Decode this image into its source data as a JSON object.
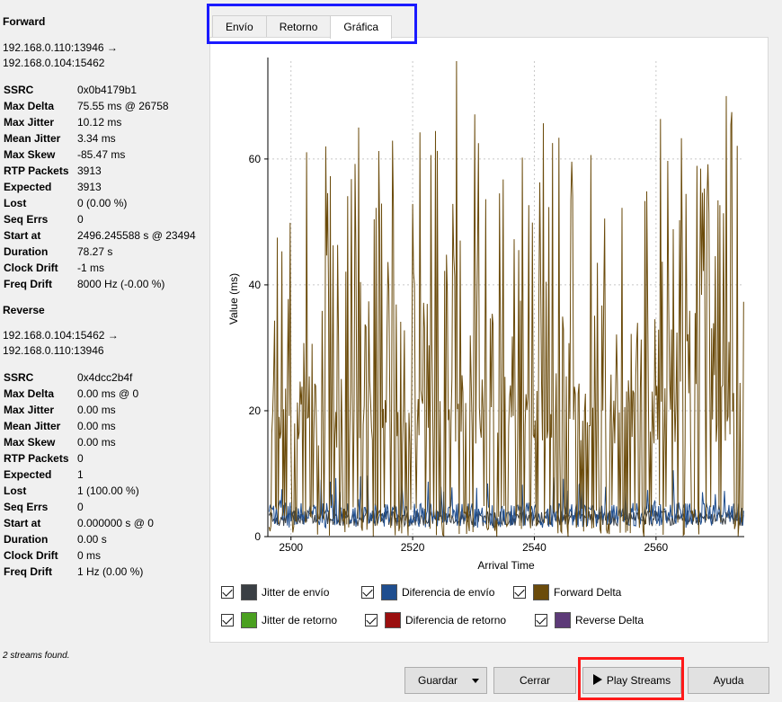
{
  "forward": {
    "title": "Forward",
    "flow_line1": "192.168.0.110:13946 →",
    "flow_line2": "192.168.0.104:15462",
    "stats": [
      {
        "k": "SSRC",
        "v": "0x0b4179b1"
      },
      {
        "k": "Max Delta",
        "v": "75.55 ms @ 26758"
      },
      {
        "k": "Max Jitter",
        "v": "10.12 ms"
      },
      {
        "k": "Mean Jitter",
        "v": "3.34 ms"
      },
      {
        "k": "Max Skew",
        "v": "-85.47 ms"
      },
      {
        "k": "RTP Packets",
        "v": "3913"
      },
      {
        "k": "Expected",
        "v": "3913"
      },
      {
        "k": "Lost",
        "v": "0 (0.00 %)"
      },
      {
        "k": "Seq Errs",
        "v": "0"
      },
      {
        "k": "Start at",
        "v": "2496.245588 s @ 23494"
      },
      {
        "k": "Duration",
        "v": "78.27 s"
      },
      {
        "k": "Clock Drift",
        "v": "-1 ms"
      },
      {
        "k": "Freq Drift",
        "v": "8000 Hz (-0.00 %)"
      }
    ]
  },
  "reverse": {
    "title": "Reverse",
    "flow_line1": "192.168.0.104:15462 →",
    "flow_line2": "192.168.0.110:13946",
    "stats": [
      {
        "k": "SSRC",
        "v": "0x4dcc2b4f"
      },
      {
        "k": "Max Delta",
        "v": "0.00 ms @ 0"
      },
      {
        "k": "Max Jitter",
        "v": "0.00 ms"
      },
      {
        "k": "Mean Jitter",
        "v": "0.00 ms"
      },
      {
        "k": "Max Skew",
        "v": "0.00 ms"
      },
      {
        "k": "RTP Packets",
        "v": "0"
      },
      {
        "k": "Expected",
        "v": "1"
      },
      {
        "k": "Lost",
        "v": "1 (100.00 %)"
      },
      {
        "k": "Seq Errs",
        "v": "0"
      },
      {
        "k": "Start at",
        "v": "0.000000 s @ 0"
      },
      {
        "k": "Duration",
        "v": "0.00 s"
      },
      {
        "k": "Clock Drift",
        "v": "0 ms"
      },
      {
        "k": "Freq Drift",
        "v": "1 Hz (0.00 %)"
      }
    ]
  },
  "status": "2 streams found.",
  "tabs": [
    "Envío",
    "Retorno",
    "Gráfica"
  ],
  "active_tab": "Gráfica",
  "legend": [
    {
      "label": "Jitter de envío",
      "color": "#3a3f44",
      "checked": true
    },
    {
      "label": "Diferencia de envío",
      "color": "#1f4e8f",
      "checked": true
    },
    {
      "label": "Forward Delta",
      "color": "#6b4b0b",
      "checked": true
    },
    {
      "label": "Jitter de retorno",
      "color": "#4aa020",
      "checked": true
    },
    {
      "label": "Diferencia de retorno",
      "color": "#9b0f0f",
      "checked": true
    },
    {
      "label": "Reverse Delta",
      "color": "#5d3a78",
      "checked": true
    }
  ],
  "buttons": {
    "guardar": "Guardar",
    "cerrar": "Cerrar",
    "play": "Play Streams",
    "ayuda": "Ayuda"
  },
  "chart_data": {
    "type": "line",
    "xlabel": "Arrival Time",
    "ylabel": "Value (ms)",
    "xlim": [
      2496.2,
      2574.5
    ],
    "ylim": [
      0,
      75.55
    ],
    "xticks": [
      2500,
      2520,
      2540,
      2560
    ],
    "yticks": [
      0,
      20,
      40,
      60
    ],
    "grid": true,
    "series": [
      {
        "name": "Forward Delta",
        "color": "#6b4b0b",
        "baseline": 20,
        "spike_peak": 75.55,
        "spike_peak_at": 2527
      },
      {
        "name": "Diferencia de envío",
        "color": "#1f4e8f",
        "baseline": 3,
        "max": 10
      },
      {
        "name": "Jitter de envío",
        "color": "#3a3f44",
        "mean": 3.34,
        "max": 10.12
      }
    ]
  }
}
